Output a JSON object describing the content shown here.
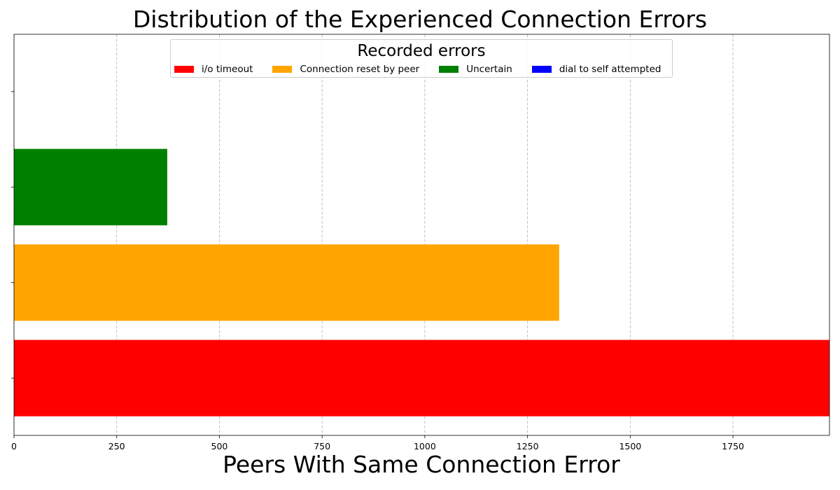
{
  "chart_data": {
    "type": "bar",
    "orientation": "horizontal",
    "title": "Distribution of the Experienced Connection Errors",
    "xlabel": "Peers With Same Connection Error",
    "ylabel": "",
    "xlim": [
      0,
      1985
    ],
    "xticks": [
      0,
      250,
      500,
      750,
      1000,
      1250,
      1500,
      1750
    ],
    "grid": {
      "x": true,
      "y": false,
      "style": "dashed"
    },
    "categories": [
      "i/o timeout",
      "Connection reset by peer",
      "Uncertain",
      "dial to self attempted"
    ],
    "values": [
      1985,
      1327,
      373,
      0
    ],
    "colors": [
      "#ff0000",
      "#ffa500",
      "#008000",
      "#0000ff"
    ],
    "legend": {
      "title": "Recorded errors",
      "placement": "upper center",
      "entries": [
        {
          "label": "i/o timeout",
          "color": "#ff0000"
        },
        {
          "label": "Connection reset by peer",
          "color": "#ffa500"
        },
        {
          "label": "Uncertain",
          "color": "#008000"
        },
        {
          "label": "dial to self attempted",
          "color": "#0000ff"
        }
      ]
    }
  }
}
